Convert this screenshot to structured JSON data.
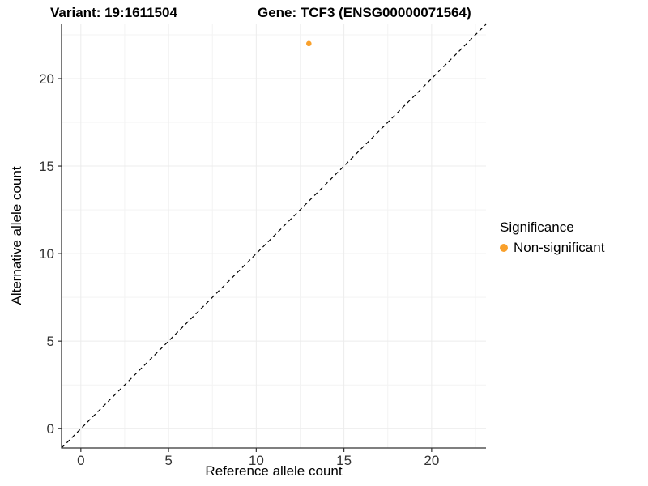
{
  "chart_data": {
    "type": "scatter",
    "title_left": "Variant: 19:1611504",
    "title_right": "Gene: TCF3 (ENSG00000071564)",
    "xlabel": "Reference allele count",
    "ylabel": "Alternative allele count",
    "xlim": [
      -1.1,
      23.1
    ],
    "ylim": [
      -1.1,
      23.1
    ],
    "x_ticks": [
      0,
      5,
      10,
      15,
      20
    ],
    "y_ticks": [
      0,
      5,
      10,
      15,
      20
    ],
    "x_minor_ticks": [
      2.5,
      7.5,
      12.5,
      17.5,
      22.5
    ],
    "y_minor_ticks": [
      2.5,
      7.5,
      12.5,
      17.5,
      22.5
    ],
    "grid": true,
    "series": [
      {
        "name": "Non-significant",
        "color": "#F9A02B",
        "points": [
          {
            "x": 13,
            "y": 22
          }
        ]
      }
    ],
    "reference_line": {
      "type": "identity",
      "style": "dashed",
      "color": "#000000"
    },
    "legend": {
      "title": "Significance",
      "position": "right",
      "items": [
        {
          "label": "Non-significant",
          "color": "#F9A02B"
        }
      ]
    }
  },
  "colors": {
    "grid_major": "#ECECEC",
    "grid_minor": "#F3F3F3",
    "axis_line": "#333333",
    "tick_mark": "#333333",
    "tick_label": "#333333",
    "background": "#FFFFFF"
  }
}
